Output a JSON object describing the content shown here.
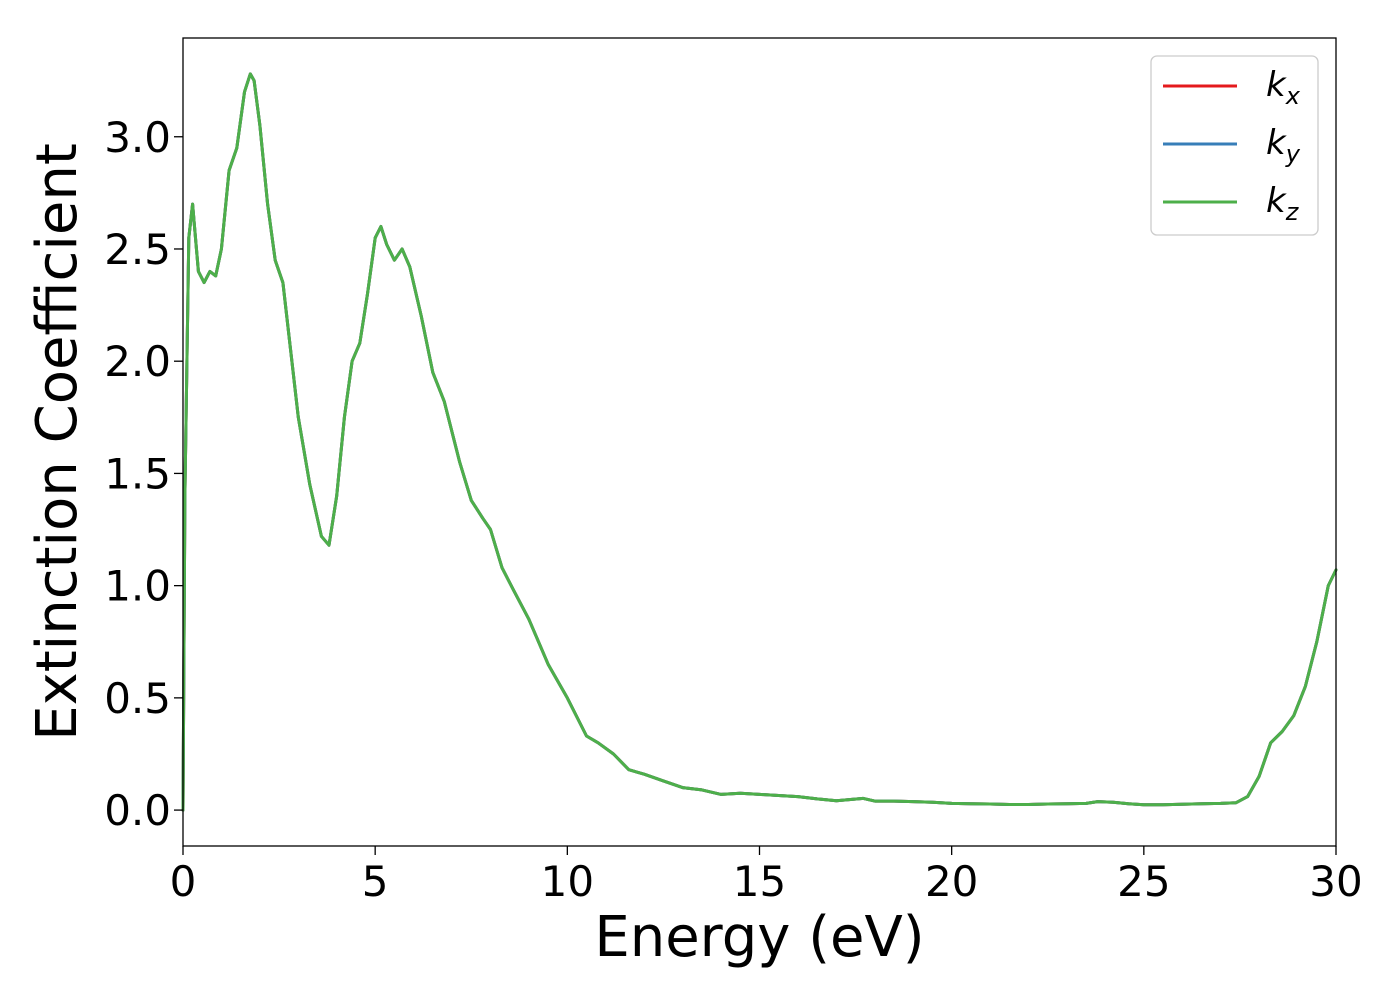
{
  "chart_data": {
    "type": "line",
    "xlabel": "Energy (eV)",
    "ylabel": "Extinction Coefficient",
    "xlim": [
      0,
      30
    ],
    "ylim": [
      -0.16,
      3.44
    ],
    "xticks": [
      "0",
      "5",
      "10",
      "15",
      "20",
      "25",
      "30"
    ],
    "yticks": [
      "0.0",
      "0.5",
      "1.0",
      "1.5",
      "2.0",
      "2.5",
      "3.0"
    ],
    "grid": false,
    "legend_position": "top-right",
    "x": [
      0,
      0.05,
      0.15,
      0.25,
      0.3,
      0.4,
      0.55,
      0.7,
      0.85,
      1.0,
      1.2,
      1.4,
      1.6,
      1.75,
      1.85,
      2.0,
      2.2,
      2.4,
      2.6,
      2.8,
      3.0,
      3.3,
      3.6,
      3.8,
      4.0,
      4.2,
      4.4,
      4.6,
      4.8,
      5.0,
      5.15,
      5.3,
      5.5,
      5.7,
      5.9,
      6.2,
      6.5,
      6.8,
      7.2,
      7.5,
      7.8,
      8.0,
      8.3,
      8.6,
      9.0,
      9.5,
      10.0,
      10.5,
      10.8,
      11.2,
      11.6,
      12.0,
      12.5,
      13.0,
      13.5,
      14.0,
      14.5,
      15.0,
      15.5,
      16.0,
      16.5,
      17.0,
      17.7,
      18.0,
      18.5,
      19.0,
      19.5,
      20.0,
      20.5,
      21.0,
      21.5,
      22.0,
      22.5,
      23.0,
      23.5,
      23.8,
      24.2,
      24.6,
      25.0,
      25.5,
      26.0,
      26.5,
      27.0,
      27.4,
      27.7,
      28.0,
      28.3,
      28.6,
      28.9,
      29.2,
      29.5,
      29.8,
      30.0
    ],
    "series": [
      {
        "name": "k_x",
        "color": "#e41a1c",
        "values": [
          0.0,
          1.4,
          2.55,
          2.7,
          2.6,
          2.4,
          2.35,
          2.4,
          2.38,
          2.5,
          2.85,
          2.95,
          3.2,
          3.28,
          3.25,
          3.05,
          2.7,
          2.45,
          2.35,
          2.05,
          1.75,
          1.45,
          1.22,
          1.18,
          1.4,
          1.75,
          2.0,
          2.08,
          2.3,
          2.55,
          2.6,
          2.52,
          2.45,
          2.5,
          2.42,
          2.2,
          1.95,
          1.82,
          1.55,
          1.38,
          1.3,
          1.25,
          1.08,
          0.98,
          0.85,
          0.65,
          0.5,
          0.33,
          0.3,
          0.25,
          0.18,
          0.16,
          0.13,
          0.1,
          0.09,
          0.07,
          0.075,
          0.07,
          0.065,
          0.06,
          0.05,
          0.042,
          0.052,
          0.04,
          0.04,
          0.038,
          0.035,
          0.03,
          0.028,
          0.027,
          0.025,
          0.025,
          0.027,
          0.028,
          0.03,
          0.038,
          0.035,
          0.028,
          0.024,
          0.024,
          0.026,
          0.028,
          0.03,
          0.033,
          0.06,
          0.15,
          0.3,
          0.35,
          0.42,
          0.55,
          0.75,
          1.0,
          1.07
        ]
      },
      {
        "name": "k_y",
        "color": "#377eb8",
        "values": [
          0.0,
          1.4,
          2.55,
          2.7,
          2.6,
          2.4,
          2.35,
          2.4,
          2.38,
          2.5,
          2.85,
          2.95,
          3.2,
          3.28,
          3.25,
          3.05,
          2.7,
          2.45,
          2.35,
          2.05,
          1.75,
          1.45,
          1.22,
          1.18,
          1.4,
          1.75,
          2.0,
          2.08,
          2.3,
          2.55,
          2.6,
          2.52,
          2.45,
          2.5,
          2.42,
          2.2,
          1.95,
          1.82,
          1.55,
          1.38,
          1.3,
          1.25,
          1.08,
          0.98,
          0.85,
          0.65,
          0.5,
          0.33,
          0.3,
          0.25,
          0.18,
          0.16,
          0.13,
          0.1,
          0.09,
          0.07,
          0.075,
          0.07,
          0.065,
          0.06,
          0.05,
          0.042,
          0.052,
          0.04,
          0.04,
          0.038,
          0.035,
          0.03,
          0.028,
          0.027,
          0.025,
          0.025,
          0.027,
          0.028,
          0.03,
          0.038,
          0.035,
          0.028,
          0.024,
          0.024,
          0.026,
          0.028,
          0.03,
          0.033,
          0.06,
          0.15,
          0.3,
          0.35,
          0.42,
          0.55,
          0.75,
          1.0,
          1.07
        ]
      },
      {
        "name": "k_z",
        "color": "#4daf4a",
        "values": [
          0.0,
          1.4,
          2.55,
          2.7,
          2.6,
          2.4,
          2.35,
          2.4,
          2.38,
          2.5,
          2.85,
          2.95,
          3.2,
          3.28,
          3.25,
          3.05,
          2.7,
          2.45,
          2.35,
          2.05,
          1.75,
          1.45,
          1.22,
          1.18,
          1.4,
          1.75,
          2.0,
          2.08,
          2.3,
          2.55,
          2.6,
          2.52,
          2.45,
          2.5,
          2.42,
          2.2,
          1.95,
          1.82,
          1.55,
          1.38,
          1.3,
          1.25,
          1.08,
          0.98,
          0.85,
          0.65,
          0.5,
          0.33,
          0.3,
          0.25,
          0.18,
          0.16,
          0.13,
          0.1,
          0.09,
          0.07,
          0.075,
          0.07,
          0.065,
          0.06,
          0.05,
          0.042,
          0.052,
          0.04,
          0.04,
          0.038,
          0.035,
          0.03,
          0.028,
          0.027,
          0.025,
          0.025,
          0.027,
          0.028,
          0.03,
          0.038,
          0.035,
          0.028,
          0.024,
          0.024,
          0.026,
          0.028,
          0.03,
          0.033,
          0.06,
          0.15,
          0.3,
          0.35,
          0.42,
          0.55,
          0.75,
          1.0,
          1.07
        ]
      }
    ],
    "legend": [
      {
        "base": "k",
        "sub": "x"
      },
      {
        "base": "k",
        "sub": "y"
      },
      {
        "base": "k",
        "sub": "z"
      }
    ]
  }
}
